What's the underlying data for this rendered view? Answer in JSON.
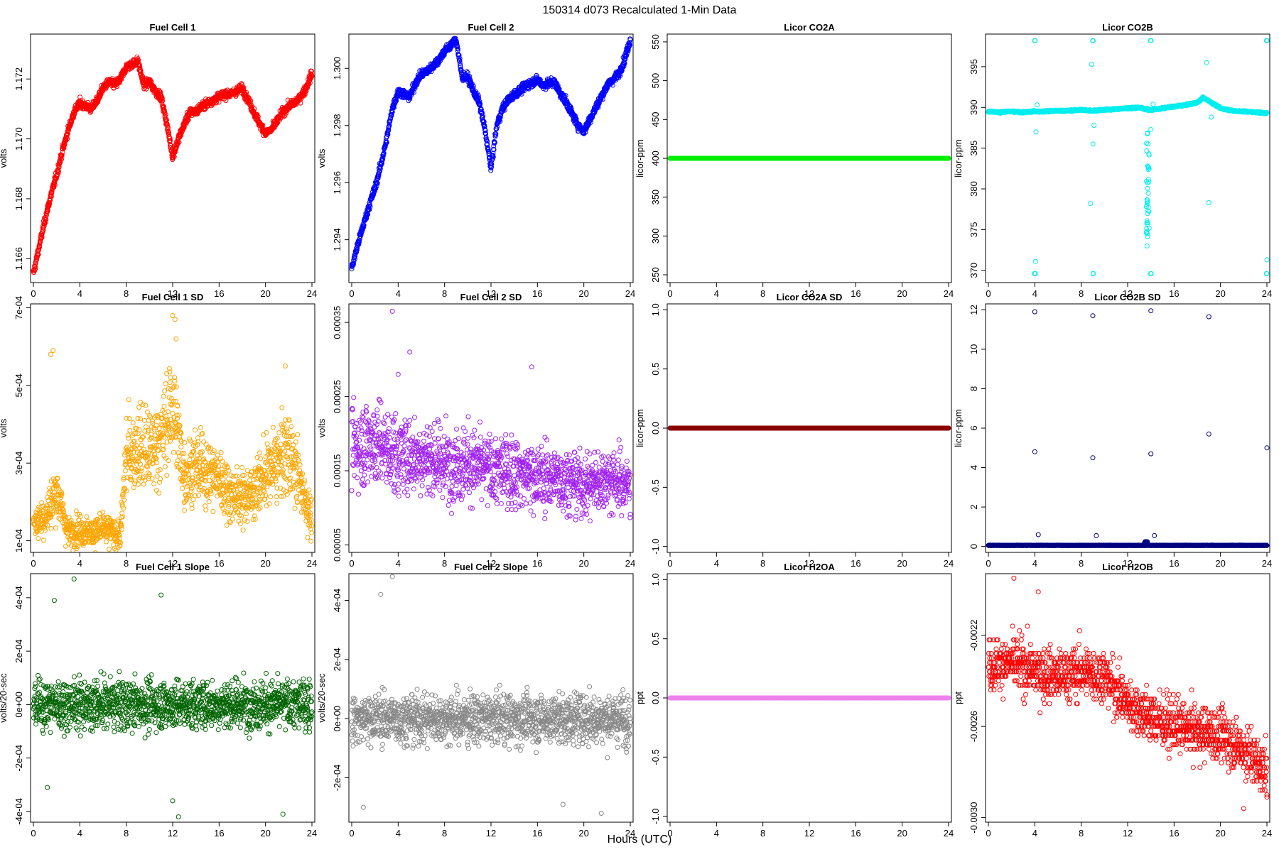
{
  "figure": {
    "title": "150314   d073   Recalculated 1-Min Data",
    "xlabel": "Hours (UTC)"
  },
  "chart_data": [
    {
      "type": "scatter",
      "title": "Fuel Cell 1",
      "ylabel": "volts",
      "color": "#ff0000",
      "xlim": [
        0,
        24
      ],
      "xticks": [
        0,
        4,
        8,
        12,
        16,
        20,
        24
      ],
      "ylim": [
        1.1652,
        1.1735
      ],
      "yticks": [
        1.166,
        1.168,
        1.17,
        1.172
      ],
      "ytick_labels": [
        "1.166",
        "1.168",
        "1.170",
        "1.172"
      ],
      "series": [
        {
          "x": [
            0,
            0.5,
            1,
            1.5,
            2,
            2.5,
            3,
            3.5,
            4,
            4.5,
            5,
            5.5,
            6,
            6.5,
            7,
            7.5,
            8,
            8.5,
            9,
            9.5,
            10,
            10.5,
            11,
            11.5,
            12,
            12.5,
            13,
            13.5,
            14,
            14.5,
            15,
            15.5,
            16,
            16.5,
            17,
            17.5,
            18,
            18.5,
            19,
            19.5,
            20,
            20.5,
            21,
            21.5,
            22,
            22.5,
            23,
            23.5,
            24
          ],
          "y": [
            1.1655,
            1.1664,
            1.1673,
            1.1681,
            1.1688,
            1.1696,
            1.1703,
            1.1709,
            1.1712,
            1.1711,
            1.171,
            1.1713,
            1.1717,
            1.1719,
            1.1718,
            1.172,
            1.1724,
            1.1725,
            1.1726,
            1.1718,
            1.1719,
            1.1716,
            1.1714,
            1.1705,
            1.1694,
            1.17,
            1.1705,
            1.1709,
            1.1709,
            1.1711,
            1.1712,
            1.1713,
            1.1714,
            1.1715,
            1.1715,
            1.1716,
            1.1717,
            1.1713,
            1.1709,
            1.1705,
            1.1702,
            1.1703,
            1.1706,
            1.1709,
            1.1711,
            1.1712,
            1.1714,
            1.1717,
            1.1722
          ]
        }
      ]
    },
    {
      "type": "scatter",
      "title": "Fuel Cell 2",
      "ylabel": "volts",
      "color": "#0000ff",
      "xlim": [
        0,
        24
      ],
      "xticks": [
        0,
        4,
        8,
        12,
        16,
        20,
        24
      ],
      "ylim": [
        1.2925,
        1.3012
      ],
      "yticks": [
        1.294,
        1.296,
        1.298,
        1.3
      ],
      "ytick_labels": [
        "1.294",
        "1.296",
        "1.298",
        "1.300"
      ],
      "series": [
        {
          "x": [
            0,
            0.5,
            1,
            1.5,
            2,
            2.5,
            3,
            3.5,
            4,
            4.5,
            5,
            5.5,
            6,
            6.5,
            7,
            7.5,
            8,
            8.5,
            9,
            9.5,
            10,
            10.5,
            11,
            11.5,
            12,
            12.5,
            13,
            13.5,
            14,
            14.5,
            15,
            15.5,
            16,
            16.5,
            17,
            17.5,
            18,
            18.5,
            19,
            19.5,
            20,
            20.5,
            21,
            21.5,
            22,
            22.5,
            23,
            23.5,
            24
          ],
          "y": [
            1.293,
            1.2938,
            1.2945,
            1.2952,
            1.2958,
            1.2966,
            1.2975,
            1.2986,
            1.2992,
            1.2991,
            1.299,
            1.2995,
            1.2998,
            1.2999,
            1.3001,
            1.3003,
            1.3006,
            1.3008,
            1.301,
            1.2997,
            1.2997,
            1.2992,
            1.2988,
            1.2978,
            1.2965,
            1.298,
            1.2986,
            1.2989,
            1.2991,
            1.2992,
            1.2994,
            1.2995,
            1.2996,
            1.2994,
            1.2995,
            1.2995,
            1.2991,
            1.2988,
            1.2984,
            1.298,
            1.2978,
            1.2982,
            1.2986,
            1.299,
            1.2994,
            1.2996,
            1.2998,
            1.3003,
            1.301
          ]
        }
      ]
    },
    {
      "type": "scatter",
      "title": "Licor CO2A",
      "ylabel": "licor-ppm",
      "color": "#00ee00",
      "xlim": [
        0,
        24
      ],
      "xticks": [
        0,
        4,
        8,
        12,
        16,
        20,
        24
      ],
      "ylim": [
        240,
        560
      ],
      "yticks": [
        250,
        300,
        350,
        400,
        450,
        500,
        550
      ],
      "ytick_labels": [
        "250",
        "300",
        "350",
        "400",
        "450",
        "500",
        "550"
      ],
      "series": [
        {
          "x": [
            0,
            24
          ],
          "y": [
            400,
            400
          ]
        }
      ]
    },
    {
      "type": "scatter",
      "title": "Licor CO2B",
      "ylabel": "licor-ppm",
      "color": "#00eeee",
      "xlim": [
        0,
        24
      ],
      "xticks": [
        0,
        4,
        8,
        12,
        16,
        20,
        24
      ],
      "ylim": [
        368.5,
        399
      ],
      "yticks": [
        370,
        375,
        380,
        385,
        390,
        395
      ],
      "ytick_labels": [
        "370",
        "375",
        "380",
        "385",
        "390",
        "395"
      ],
      "series": [
        {
          "x": [
            0,
            1,
            2,
            3,
            4,
            5,
            6,
            7,
            8,
            9,
            10,
            11,
            12,
            13,
            13.5,
            14,
            15,
            16,
            17,
            18,
            18.5,
            19,
            20,
            21,
            22,
            23,
            24
          ],
          "y": [
            389.5,
            389.4,
            389.5,
            389.4,
            389.5,
            389.5,
            389.6,
            389.6,
            389.7,
            389.6,
            389.7,
            389.8,
            389.9,
            390.0,
            389.8,
            389.7,
            389.9,
            390.1,
            390.3,
            390.6,
            391.2,
            390.8,
            389.9,
            389.6,
            389.5,
            389.4,
            389.3
          ]
        }
      ]
    },
    {
      "type": "scatter",
      "title": "Fuel Cell 1 SD",
      "ylabel": "volts",
      "color": "#ffa500",
      "xlim": [
        0,
        24
      ],
      "xticks": [
        0,
        4,
        8,
        12,
        16,
        20,
        24
      ],
      "ylim": [
        7e-05,
        0.00071
      ],
      "yticks": [
        0.0001,
        0.0003,
        0.0005,
        0.0007
      ],
      "ytick_labels": [
        "1e-04",
        "3e-04",
        "5e-04",
        "7e-04"
      ],
      "series": [
        {
          "x": [
            0,
            1,
            2,
            3,
            4,
            5,
            6,
            7,
            7.5,
            8,
            9,
            10,
            11,
            12,
            13,
            14,
            15,
            16,
            17,
            18,
            19,
            20,
            21,
            22,
            23,
            24
          ],
          "y": [
            0.00015,
            0.00016,
            0.00023,
            0.00012,
            0.00013,
            0.00012,
            0.00013,
            0.00012,
            0.00011,
            0.00032,
            0.00034,
            0.00033,
            0.00036,
            0.00045,
            0.00027,
            0.00029,
            0.00028,
            0.00026,
            0.00022,
            0.00021,
            0.00023,
            0.00027,
            0.0003,
            0.00033,
            0.00025,
            0.00015
          ]
        }
      ]
    },
    {
      "type": "scatter",
      "title": "Fuel Cell 2 SD",
      "ylabel": "volts",
      "color": "#a020f0",
      "xlim": [
        0,
        24
      ],
      "xticks": [
        0,
        4,
        8,
        12,
        16,
        20,
        24
      ],
      "ylim": [
        4e-05,
        0.000375
      ],
      "yticks": [
        5e-05,
        0.00015,
        0.00025,
        0.00035
      ],
      "ytick_labels": [
        "0.00005",
        "0.00015",
        "0.00025",
        "0.00035"
      ],
      "series": [
        {
          "x": [
            0,
            2,
            4,
            6,
            8,
            10,
            12,
            14,
            16,
            18,
            20,
            22,
            24
          ],
          "y": [
            0.00018,
            0.00019,
            0.00017,
            0.00017,
            0.00016,
            0.00016,
            0.00015,
            0.00015,
            0.00014,
            0.00014,
            0.00013,
            0.00014,
            0.00013
          ]
        }
      ]
    },
    {
      "type": "scatter",
      "title": "Licor CO2A SD",
      "ylabel": "licor-ppm",
      "color": "#8b0000",
      "xlim": [
        0,
        24
      ],
      "xticks": [
        0,
        4,
        8,
        12,
        16,
        20,
        24
      ],
      "ylim": [
        -1.05,
        1.05
      ],
      "yticks": [
        -1,
        -0.5,
        0,
        0.5,
        1
      ],
      "ytick_labels": [
        "-1.0",
        "-0.5",
        "0.0",
        "0.5",
        "1.0"
      ],
      "series": [
        {
          "x": [
            0,
            24
          ],
          "y": [
            0,
            0
          ]
        }
      ]
    },
    {
      "type": "scatter",
      "title": "Licor CO2B SD",
      "ylabel": "licor-ppm",
      "color": "#000080",
      "xlim": [
        0,
        24
      ],
      "xticks": [
        0,
        4,
        8,
        12,
        16,
        20,
        24
      ],
      "ylim": [
        -0.3,
        12.3
      ],
      "yticks": [
        0,
        2,
        4,
        6,
        8,
        10,
        12
      ],
      "ytick_labels": [
        "0",
        "2",
        "4",
        "6",
        "8",
        "10",
        "12"
      ],
      "series": [
        {
          "x": [
            4,
            9,
            14,
            19,
            4,
            9,
            14,
            19,
            24,
            4.3,
            9.3,
            14.3
          ],
          "y": [
            11.9,
            11.7,
            11.95,
            11.65,
            4.8,
            4.5,
            4.7,
            5.7,
            5.0,
            0.6,
            0.55,
            0.55
          ]
        }
      ]
    },
    {
      "type": "scatter",
      "title": "Fuel Cell 1 Slope",
      "ylabel": "volts/20-sec",
      "color": "#006400",
      "xlim": [
        0,
        24
      ],
      "xticks": [
        0,
        4,
        8,
        12,
        16,
        20,
        24
      ],
      "ylim": [
        -0.00044,
        0.00049
      ],
      "yticks": [
        -0.0004,
        -0.0002,
        0,
        0.0002,
        0.0004
      ],
      "ytick_labels": [
        "-4e-04",
        "-2e-04",
        "0e+00",
        "2e-04",
        "4e-04"
      ],
      "series": [
        {
          "x": [
            0,
            24
          ],
          "y": [
            0,
            0
          ]
        }
      ]
    },
    {
      "type": "scatter",
      "title": "Fuel Cell 2 Slope",
      "ylabel": "volts/20-sec",
      "color": "#888888",
      "xlim": [
        0,
        24
      ],
      "xticks": [
        0,
        4,
        8,
        12,
        16,
        20,
        24
      ],
      "ylim": [
        -0.00035,
        0.00049
      ],
      "yticks": [
        -0.0002,
        0,
        0.0002,
        0.0004
      ],
      "ytick_labels": [
        "-2e-04",
        "0e+00",
        "2e-04",
        "4e-04"
      ],
      "series": [
        {
          "x": [
            0,
            24
          ],
          "y": [
            0,
            0
          ]
        }
      ]
    },
    {
      "type": "scatter",
      "title": "Licor H2OA",
      "ylabel": "ppt",
      "color": "#ee82ee",
      "xlim": [
        0,
        24
      ],
      "xticks": [
        0,
        4,
        8,
        12,
        16,
        20,
        24
      ],
      "ylim": [
        -1.05,
        1.05
      ],
      "yticks": [
        -1,
        -0.5,
        0,
        0.5,
        1
      ],
      "ytick_labels": [
        "-1.0",
        "-0.5",
        "0.0",
        "0.5",
        "1.0"
      ],
      "series": [
        {
          "x": [
            0,
            24
          ],
          "y": [
            0,
            0
          ]
        }
      ]
    },
    {
      "type": "scatter",
      "title": "Licor H2OB",
      "ylabel": "ppt",
      "color": "#ff0000",
      "xlim": [
        0,
        24
      ],
      "xticks": [
        0,
        4,
        8,
        12,
        16,
        20,
        24
      ],
      "ylim": [
        -0.00302,
        -0.00193
      ],
      "yticks": [
        -0.003,
        -0.0026,
        -0.0022
      ],
      "ytick_labels": [
        "-0.0030",
        "-0.0026",
        "-0.0022"
      ],
      "series": [
        {
          "x": [
            0,
            2,
            4,
            6,
            8,
            10,
            12,
            14,
            16,
            18,
            20,
            22,
            24
          ],
          "y": [
            -0.00233,
            -0.00232,
            -0.00236,
            -0.00238,
            -0.00236,
            -0.00238,
            -0.0025,
            -0.00256,
            -0.0026,
            -0.00262,
            -0.00264,
            -0.0027,
            -0.0028
          ]
        }
      ]
    }
  ]
}
